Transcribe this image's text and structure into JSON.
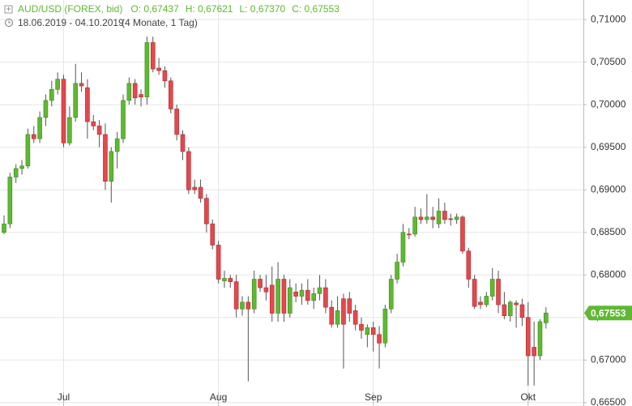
{
  "chart_data": {
    "type": "candlestick",
    "title": "AUD/USD (FOREX, bid)",
    "ohlc_labels": [
      "O: 0,67437",
      "H: 0,67621",
      "L: 0,67370",
      "C: 0,67553"
    ],
    "date_range": "18.06.2019 - 04.10.2019",
    "duration": "(4 Monate, 1 Tag)",
    "last_price_label": "0,67553",
    "up_color": "#5fb832",
    "down_color": "#e4484d",
    "grid": true,
    "categories": [
      null,
      null,
      null,
      null,
      null,
      null,
      null,
      null,
      null,
      null,
      "Jul",
      null,
      null,
      null,
      null,
      null,
      null,
      null,
      null,
      null,
      null,
      null,
      null,
      null,
      null,
      null,
      null,
      null,
      null,
      null,
      null,
      null,
      null,
      null,
      null,
      null,
      "Aug",
      null,
      null,
      null,
      null,
      null,
      null,
      null,
      null,
      null,
      null,
      null,
      null,
      null,
      null,
      null,
      null,
      null,
      null,
      null,
      null,
      null,
      null,
      null,
      null,
      null,
      "Sep",
      null,
      null,
      null,
      null,
      null,
      null,
      null,
      null,
      null,
      null,
      null,
      null,
      null,
      null,
      null,
      null,
      null,
      null,
      null,
      null,
      null,
      null,
      null,
      null,
      null,
      "Okt",
      null,
      null,
      null
    ],
    "open": [
      0.685,
      0.686,
      0.6915,
      0.6925,
      0.6928,
      0.6965,
      0.696,
      0.6985,
      0.7005,
      0.7018,
      0.703,
      0.6955,
      0.6985,
      0.7025,
      0.702,
      0.698,
      0.6975,
      0.6965,
      0.691,
      0.6945,
      0.696,
      0.7005,
      0.7025,
      0.7012,
      0.7009,
      0.7073,
      0.7043,
      0.704,
      0.7028,
      0.6995,
      0.6965,
      0.6945,
      0.6903,
      0.6903,
      0.689,
      0.686,
      0.6835,
      0.6793,
      0.6796,
      0.6792,
      0.676,
      0.6768,
      0.676,
      0.6795,
      0.6785,
      0.6788,
      0.6755,
      0.6795,
      0.6755,
      0.678,
      0.6775,
      0.6782,
      0.677,
      0.6778,
      0.6785,
      0.6762,
      0.6742,
      0.6772,
      0.6772,
      0.6758,
      0.6742,
      0.673,
      0.6738,
      0.673,
      0.672,
      0.676,
      0.6795,
      0.6815,
      0.6848,
      0.6848,
      0.6868,
      0.6865,
      0.6868,
      0.686,
      0.6875,
      0.6866,
      0.6865,
      0.6868,
      0.6828,
      0.6795,
      0.6768,
      0.6765,
      0.6775,
      0.6795,
      0.6765,
      0.6752,
      0.6767,
      0.6765,
      0.675,
      0.6715,
      0.6705,
      0.67437
    ],
    "high": [
      0.687,
      0.692,
      0.693,
      0.6935,
      0.6972,
      0.6975,
      0.6992,
      0.7012,
      0.7028,
      0.7038,
      0.7035,
      0.6998,
      0.7048,
      0.7038,
      0.703,
      0.6988,
      0.6982,
      0.6978,
      0.695,
      0.6968,
      0.7012,
      0.7032,
      0.703,
      0.7018,
      0.708,
      0.708,
      0.7055,
      0.7045,
      0.7032,
      0.7,
      0.697,
      0.695,
      0.6912,
      0.6912,
      0.6895,
      0.6865,
      0.684,
      0.6805,
      0.68,
      0.68,
      0.6775,
      0.6775,
      0.6805,
      0.68,
      0.68,
      0.681,
      0.6815,
      0.68,
      0.6795,
      0.679,
      0.679,
      0.6795,
      0.6785,
      0.68,
      0.6795,
      0.677,
      0.6775,
      0.6778,
      0.678,
      0.6765,
      0.675,
      0.6742,
      0.6745,
      0.674,
      0.6765,
      0.68,
      0.6825,
      0.686,
      0.6855,
      0.688,
      0.6878,
      0.6895,
      0.688,
      0.689,
      0.6885,
      0.6872,
      0.6872,
      0.687,
      0.6832,
      0.68,
      0.6775,
      0.678,
      0.6808,
      0.6805,
      0.678,
      0.677,
      0.677,
      0.6772,
      0.6768,
      0.6745,
      0.6748,
      0.67621
    ],
    "low": [
      0.6848,
      0.6855,
      0.6908,
      0.6918,
      0.6925,
      0.6955,
      0.6955,
      0.6975,
      0.6998,
      0.7012,
      0.695,
      0.6952,
      0.698,
      0.7015,
      0.696,
      0.697,
      0.695,
      0.69,
      0.6885,
      0.6925,
      0.6955,
      0.7,
      0.7,
      0.6998,
      0.7,
      0.7038,
      0.7035,
      0.702,
      0.699,
      0.6958,
      0.6935,
      0.6895,
      0.6895,
      0.6885,
      0.685,
      0.683,
      0.679,
      0.6785,
      0.6785,
      0.675,
      0.6752,
      0.6675,
      0.6755,
      0.678,
      0.677,
      0.6745,
      0.6745,
      0.6745,
      0.675,
      0.6768,
      0.6765,
      0.6765,
      0.676,
      0.677,
      0.6755,
      0.6738,
      0.6738,
      0.669,
      0.6745,
      0.6735,
      0.6725,
      0.6715,
      0.671,
      0.669,
      0.6715,
      0.6755,
      0.679,
      0.681,
      0.6842,
      0.6845,
      0.686,
      0.686,
      0.6855,
      0.6855,
      0.686,
      0.6858,
      0.686,
      0.6825,
      0.6785,
      0.676,
      0.676,
      0.6762,
      0.677,
      0.6755,
      0.6748,
      0.6745,
      0.6738,
      0.674,
      0.667,
      0.667,
      0.67,
      0.6737
    ],
    "close": [
      0.686,
      0.6915,
      0.6925,
      0.6928,
      0.6965,
      0.696,
      0.6985,
      0.7005,
      0.7018,
      0.703,
      0.6955,
      0.6985,
      0.7025,
      0.7022,
      0.698,
      0.6975,
      0.6965,
      0.691,
      0.6945,
      0.696,
      0.7005,
      0.7025,
      0.7008,
      0.7009,
      0.7073,
      0.7042,
      0.704,
      0.7028,
      0.6995,
      0.6965,
      0.6945,
      0.69,
      0.69,
      0.689,
      0.686,
      0.6835,
      0.6795,
      0.6796,
      0.6792,
      0.676,
      0.6768,
      0.676,
      0.6795,
      0.6785,
      0.678,
      0.6755,
      0.6795,
      0.6755,
      0.6785,
      0.6775,
      0.6782,
      0.677,
      0.6778,
      0.6785,
      0.6762,
      0.6742,
      0.6758,
      0.6742,
      0.6755,
      0.6742,
      0.6735,
      0.6738,
      0.673,
      0.672,
      0.676,
      0.6795,
      0.6815,
      0.685,
      0.6847,
      0.6868,
      0.6865,
      0.6868,
      0.6865,
      0.6875,
      0.6865,
      0.6865,
      0.6868,
      0.6828,
      0.6795,
      0.6763,
      0.6765,
      0.6775,
      0.6795,
      0.6765,
      0.6752,
      0.6768,
      0.6765,
      0.675,
      0.6705,
      0.6705,
      0.6745,
      0.67553
    ],
    "ylim": [
      0.6646,
      0.7123
    ],
    "yticks": [
      {
        "value": 0.665,
        "label": "0,66500"
      },
      {
        "value": 0.67,
        "label": "0,67000"
      },
      {
        "value": 0.675,
        "label": "0,67500"
      },
      {
        "value": 0.68,
        "label": "0,68000"
      },
      {
        "value": 0.685,
        "label": "0,68500"
      },
      {
        "value": 0.69,
        "label": "0,69000"
      },
      {
        "value": 0.695,
        "label": "0,69500"
      },
      {
        "value": 0.7,
        "label": "0,70000"
      },
      {
        "value": 0.705,
        "label": "0,70500"
      },
      {
        "value": 0.71,
        "label": "0,71000"
      }
    ]
  }
}
